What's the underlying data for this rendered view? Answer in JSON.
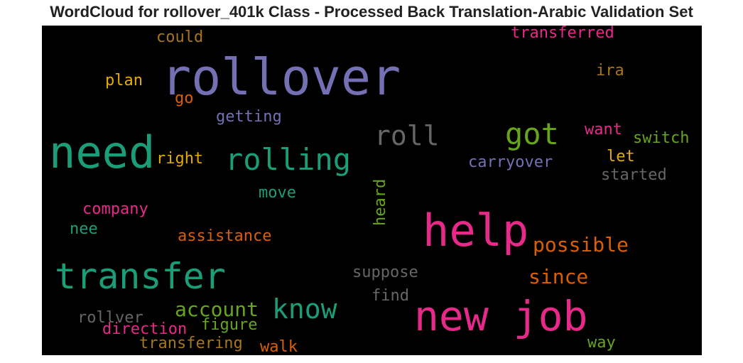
{
  "chart_data": {
    "type": "wordcloud",
    "title": "WordCloud for rollover_401k Class - Processed Back Translation-Arabic Validation Set",
    "background": "#000000",
    "words": [
      {
        "text": "rollover",
        "color": "#7570b3"
      },
      {
        "text": "need",
        "color": "#1b9e77"
      },
      {
        "text": "help",
        "color": "#e7298a"
      },
      {
        "text": "new job",
        "color": "#e7298a"
      },
      {
        "text": "transfer",
        "color": "#1b9e77"
      },
      {
        "text": "rolling",
        "color": "#1b9e77"
      },
      {
        "text": "got",
        "color": "#66a61e"
      },
      {
        "text": "roll",
        "color": "#666666"
      },
      {
        "text": "know",
        "color": "#1b9e77"
      },
      {
        "text": "account",
        "color": "#66a61e"
      },
      {
        "text": "possible",
        "color": "#d95f02"
      },
      {
        "text": "since",
        "color": "#d95f02"
      },
      {
        "text": "transferred",
        "color": "#e7298a"
      },
      {
        "text": "could",
        "color": "#a6761d"
      },
      {
        "text": "ira",
        "color": "#a6761d"
      },
      {
        "text": "plan",
        "color": "#e6ab02"
      },
      {
        "text": "go",
        "color": "#d95f02"
      },
      {
        "text": "getting",
        "color": "#7570b3"
      },
      {
        "text": "want",
        "color": "#e7298a"
      },
      {
        "text": "switch",
        "color": "#66a61e"
      },
      {
        "text": "right",
        "color": "#e6ab02"
      },
      {
        "text": "carryover",
        "color": "#7570b3"
      },
      {
        "text": "let",
        "color": "#e6ab02"
      },
      {
        "text": "started",
        "color": "#666666"
      },
      {
        "text": "heard",
        "color": "#66a61e"
      },
      {
        "text": "move",
        "color": "#1b9e77"
      },
      {
        "text": "company",
        "color": "#e7298a"
      },
      {
        "text": "nee",
        "color": "#1b9e77"
      },
      {
        "text": "assistance",
        "color": "#d95f02"
      },
      {
        "text": "suppose",
        "color": "#666666"
      },
      {
        "text": "find",
        "color": "#666666"
      },
      {
        "text": "rollver",
        "color": "#666666"
      },
      {
        "text": "direction",
        "color": "#e7298a"
      },
      {
        "text": "figure",
        "color": "#66a61e"
      },
      {
        "text": "transfering",
        "color": "#a6761d"
      },
      {
        "text": "walk",
        "color": "#d95f02"
      },
      {
        "text": "way",
        "color": "#66a61e"
      }
    ]
  }
}
